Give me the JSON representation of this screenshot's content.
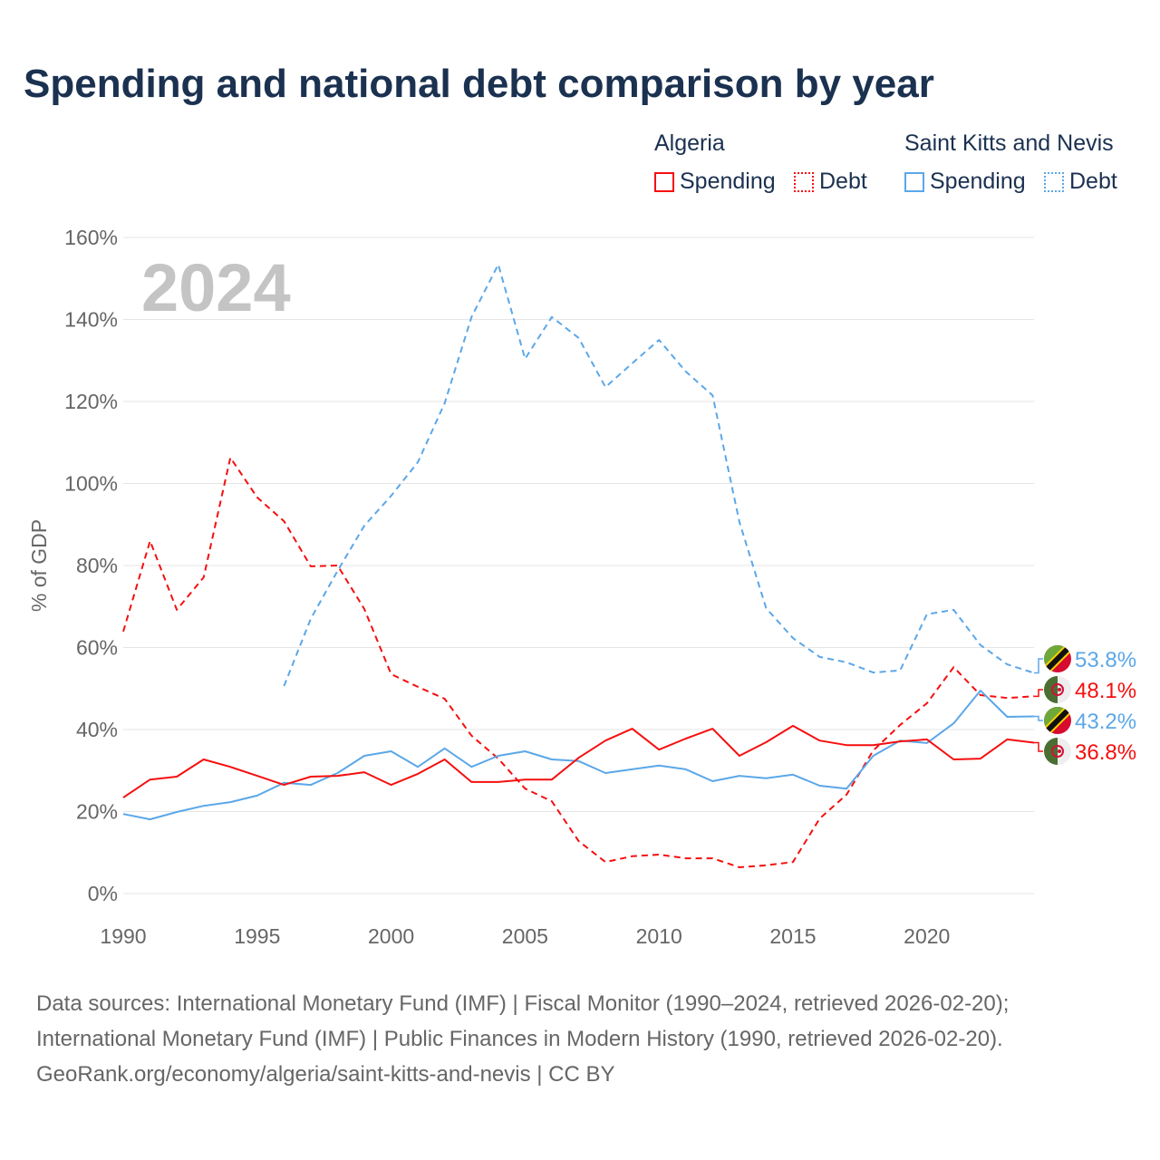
{
  "chart_data": {
    "type": "line",
    "title": "Spending and national debt comparison by year",
    "year_label": "2024",
    "ylabel": "% of GDP",
    "xlim": [
      1990,
      2024
    ],
    "ylim": [
      0,
      160
    ],
    "yticks": [
      0,
      20,
      40,
      60,
      80,
      100,
      120,
      140,
      160
    ],
    "ytick_labels": [
      "0%",
      "20%",
      "40%",
      "60%",
      "80%",
      "100%",
      "120%",
      "140%",
      "160%"
    ],
    "xticks": [
      1990,
      1995,
      2000,
      2005,
      2010,
      2015,
      2020
    ],
    "xtick_labels": [
      "1990",
      "1995",
      "2000",
      "2005",
      "2010",
      "2015",
      "2020"
    ],
    "grid": true,
    "legend": {
      "placement": "top-right",
      "groups": [
        {
          "country": "Algeria",
          "spending": "Spending",
          "debt": "Debt"
        },
        {
          "country": "Saint Kitts and Nevis",
          "spending": "Spending",
          "debt": "Debt"
        }
      ]
    },
    "colors": {
      "algeria": "#f50f0f",
      "skn": "#5ba7e8",
      "title": "#1b3150"
    },
    "series": [
      {
        "name": "Saint Kitts and Nevis Debt",
        "color": "#5ba7e8",
        "dashed": true,
        "start": 1996,
        "values": [
          50.6,
          67.0,
          78.7,
          89.7,
          97.0,
          105.2,
          119.6,
          140.6,
          153.4,
          130.4,
          140.6,
          135.5,
          123.5,
          129.3,
          135.0,
          127.3,
          121.5,
          90.6,
          69.6,
          62.3,
          57.7,
          56.4,
          53.9,
          54.4,
          68.1,
          69.2,
          60.6,
          55.9,
          53.8
        ],
        "end_label": "53.8%",
        "flag": "skn"
      },
      {
        "name": "Algeria Debt",
        "color": "#f50f0f",
        "dashed": true,
        "start": 1990,
        "values": [
          63.9,
          86.0,
          69.2,
          77.1,
          106.3,
          96.6,
          90.8,
          79.8,
          80.0,
          69.4,
          53.5,
          50.4,
          47.5,
          38.5,
          32.9,
          25.6,
          22.5,
          12.8,
          7.7,
          9.1,
          9.5,
          8.6,
          8.6,
          6.4,
          6.9,
          7.7,
          18.3,
          24.1,
          34.9,
          41.1,
          46.4,
          55.2,
          48.4,
          47.7,
          48.1
        ],
        "end_label": "48.1%",
        "flag": "algeria"
      },
      {
        "name": "Saint Kitts and Nevis Spending",
        "color": "#5ba7e8",
        "dashed": false,
        "start": 1990,
        "values": [
          19.4,
          18.1,
          19.9,
          21.4,
          22.3,
          23.9,
          27.0,
          26.5,
          29.4,
          33.6,
          34.7,
          30.9,
          35.4,
          30.9,
          33.6,
          34.7,
          32.7,
          32.3,
          29.4,
          30.3,
          31.2,
          30.3,
          27.4,
          28.7,
          28.1,
          29.0,
          26.3,
          25.6,
          33.6,
          37.3,
          36.7,
          41.5,
          49.5,
          43.1,
          43.2
        ],
        "end_label": "43.2%",
        "flag": "skn"
      },
      {
        "name": "Algeria Spending",
        "color": "#f50f0f",
        "dashed": false,
        "start": 1990,
        "values": [
          23.4,
          27.8,
          28.5,
          32.7,
          30.9,
          28.7,
          26.5,
          28.5,
          28.7,
          29.6,
          26.5,
          29.2,
          32.7,
          27.2,
          27.2,
          27.8,
          27.8,
          33.1,
          37.3,
          40.2,
          35.1,
          37.8,
          40.2,
          33.6,
          36.9,
          40.9,
          37.3,
          36.2,
          36.2,
          37.1,
          37.6,
          32.7,
          32.9,
          37.6,
          36.8
        ],
        "end_label": "36.8%",
        "flag": "algeria"
      }
    ]
  },
  "sources": [
    "Data sources: International Monetary Fund (IMF) | Fiscal Monitor (1990–2024, retrieved 2026-02-20);",
    "International Monetary Fund (IMF) | Public Finances in Modern History (1990, retrieved 2026-02-20).",
    "GeoRank.org/economy/algeria/saint-kitts-and-nevis | CC BY"
  ]
}
